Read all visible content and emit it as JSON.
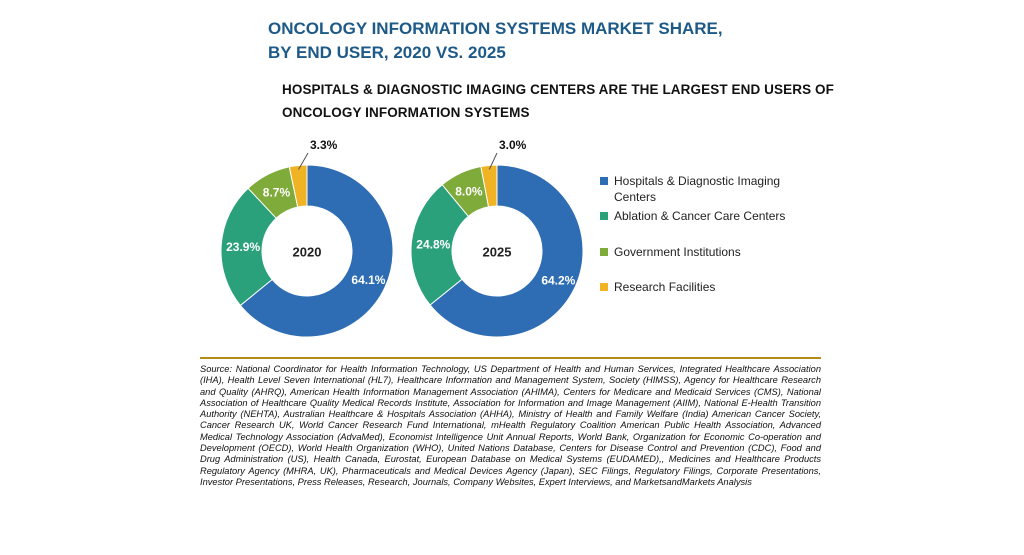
{
  "title": {
    "line1": "ONCOLOGY INFORMATION SYSTEMS MARKET SHARE,",
    "line2": "BY END USER, 2020 VS. 2025"
  },
  "subtitle": {
    "line1": "HOSPITALS & DIAGNOSTIC IMAGING CENTERS ARE THE LARGEST END USERS OF",
    "line2": "ONCOLOGY INFORMATION SYSTEMS"
  },
  "chart_data": {
    "type": "pie",
    "variant": "donut",
    "categories": [
      "Hospitals & Diagnostic Imaging Centers",
      "Ablation & Cancer Care Centers",
      "Government Institutions",
      "Research Facilities"
    ],
    "colors": [
      "#2e6db4",
      "#2aa17b",
      "#7fab3b",
      "#f0b323"
    ],
    "series": [
      {
        "center_label": "2020",
        "values": [
          64.1,
          23.9,
          8.7,
          3.3
        ],
        "labels": [
          "64.1%",
          "23.9%",
          "8.7%",
          "3.3%"
        ]
      },
      {
        "center_label": "2025",
        "values": [
          64.2,
          24.8,
          8.0,
          3.0
        ],
        "labels": [
          "64.2%",
          "24.8%",
          "8.0%",
          "3.0%"
        ]
      }
    ],
    "legend_position": "right"
  },
  "legend": {
    "items": [
      {
        "line1": "Hospitals & Diagnostic Imaging",
        "line2": "Centers"
      },
      {
        "line1": "Ablation & Cancer Care Centers"
      },
      {
        "line1": "Government Institutions"
      },
      {
        "line1": "Research Facilities"
      }
    ]
  },
  "source": {
    "text": "Source: National Coordinator for Health Information Technology, US Department of Health and Human Services, Integrated Healthcare Association (IHA), Health Level Seven International (HL7), Healthcare Information and Management System, Society (HIMSS), Agency for Healthcare Research and Quality (AHRQ), American Health Information Management Association (AHIMA), Centers for Medicare and Medicaid Services (CMS), National Association of Healthcare Quality Medical Records Institute, Association for Information and Image Management (AIIM), National E-Health Transition Authority (NEHTA), Australian Healthcare & Hospitals Association (AHHA), Ministry of Health and Family Welfare (India) American Cancer Society, Cancer Research UK, World Cancer Research Fund International, mHealth Regulatory Coalition American Public Health Association, Advanced Medical Technology Association (AdvaMed), Economist Intelligence Unit Annual Reports, World Bank, Organization for Economic Co-operation and Development (OECD), World Health Organization (WHO), United Nations Database, Centers for Disease Control and Prevention (CDC), Food and Drug Administration (US), Health Canada, Eurostat, European Database on Medical Systems (EUDAMED),, Medicines and Healthcare Products Regulatory Agency (MHRA, UK), Pharmaceuticals and Medical Devices Agency (Japan), SEC Filings, Regulatory Filings, Corporate Presentations, Investor Presentations, Press Releases, Research, Journals, Company Websites, Expert Interviews, and MarketsandMarkets Analysis"
  }
}
